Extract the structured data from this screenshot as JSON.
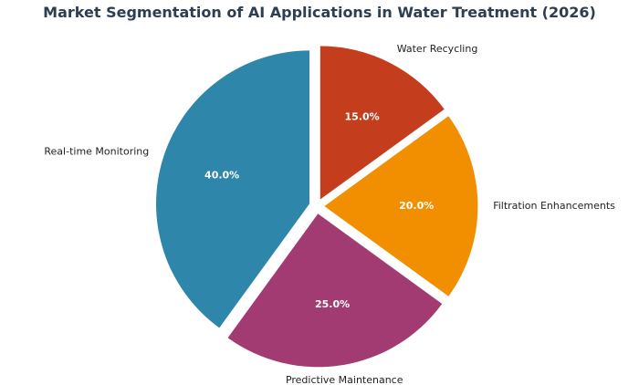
{
  "chart_data": {
    "type": "pie",
    "title": "Market Segmentation of AI Applications in Water Treatment (2026)",
    "categories": [
      "Water Recycling",
      "Filtration Enhancements",
      "Predictive Maintenance",
      "Real-time Monitoring"
    ],
    "values": [
      15.0,
      20.0,
      25.0,
      40.0
    ],
    "value_labels": [
      "15.0%",
      "20.0%",
      "25.0%",
      "40.0%"
    ],
    "colors": [
      "#c43e1e",
      "#f18f01",
      "#a23b72",
      "#2e86ab"
    ],
    "explode": [
      0.05,
      0.05,
      0.05,
      0.05
    ],
    "start": "12 o'clock",
    "direction": "clockwise",
    "legend": "none"
  }
}
